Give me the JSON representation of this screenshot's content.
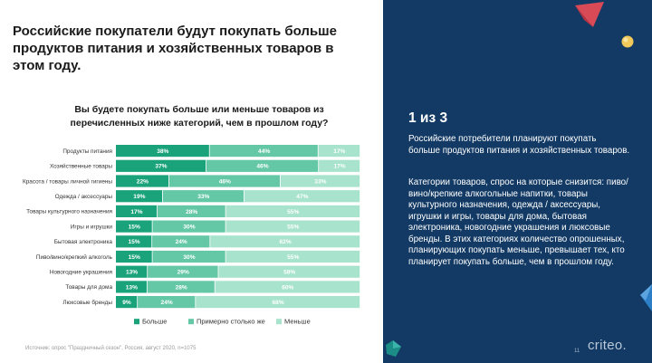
{
  "title": "Российские покупатели будут покупать больше продуктов питания и хозяйственных товаров в этом году.",
  "question": "Вы будете покупать больше или меньше товаров из перечисленных ниже категорий, чем в прошлом году?",
  "source": "Источник: опрос \"Праздничный сезон\", Россия, август 2020, n=1075",
  "panel": {
    "heading": "1 из 3",
    "paragraph1": "Российские потребители планируют покупать больше продуктов питания и хозяйственных товаров.",
    "paragraph2": "Категории товаров, спрос на которые снизится: пиво/вино/крепкие алкогольные напитки, товары культурного назначения, одежда / аксессуары, игрушки и игры, товары для дома, бытовая электроника, новогодние украшения и люксовые бренды. В этих категориях количество опрошенных, планирующих покупать меньше, превышает тех, кто планирует покупать больше, чем в прошлом году.",
    "page_number": "11",
    "logo": "criteo."
  },
  "colors": {
    "more": "#1aa37a",
    "same": "#64c8a6",
    "less": "#a7e3cd",
    "panel_bg": "#123a64"
  },
  "chart_data": {
    "type": "bar",
    "orientation": "horizontal",
    "stacked": true,
    "categories": [
      "Продукты питания",
      "Хозяйственные товары",
      "Красота / товары личной гигиены",
      "Одежда / аксессуары",
      "Товары культурного назначения",
      "Игры и игрушки",
      "Бытовая электроника",
      "Пиво/вино/крепкий алкоголь",
      "Новогодние украшения",
      "Товары для дома",
      "Люксовые бренды"
    ],
    "series": [
      {
        "name": "Больше",
        "color": "#1aa37a",
        "values": [
          38,
          37,
          22,
          19,
          17,
          15,
          15,
          15,
          13,
          13,
          9
        ]
      },
      {
        "name": "Примерно столько же",
        "color": "#64c8a6",
        "values": [
          44,
          46,
          46,
          33,
          28,
          30,
          24,
          30,
          29,
          28,
          24
        ]
      },
      {
        "name": "Меньше",
        "color": "#a7e3cd",
        "values": [
          17,
          17,
          33,
          47,
          55,
          55,
          62,
          55,
          58,
          60,
          68
        ]
      }
    ],
    "value_labels": [
      [
        "38%",
        "44%",
        "17%"
      ],
      [
        "37%",
        "46%",
        "17%"
      ],
      [
        "22%",
        "46%",
        "33%"
      ],
      [
        "19%",
        "33%",
        "47%"
      ],
      [
        "17%",
        "28%",
        "55%"
      ],
      [
        "15%",
        "30%",
        "55%"
      ],
      [
        "15%",
        "24%",
        "62%"
      ],
      [
        "15%",
        "30%",
        "55%"
      ],
      [
        "13%",
        "29%",
        "58%"
      ],
      [
        "13%",
        "28%",
        "60%"
      ],
      [
        "9%",
        "24%",
        "68%"
      ]
    ],
    "legend": [
      "Больше",
      "Примерно столько же",
      "Меньше"
    ],
    "legend_position": "bottom",
    "grid": false
  }
}
